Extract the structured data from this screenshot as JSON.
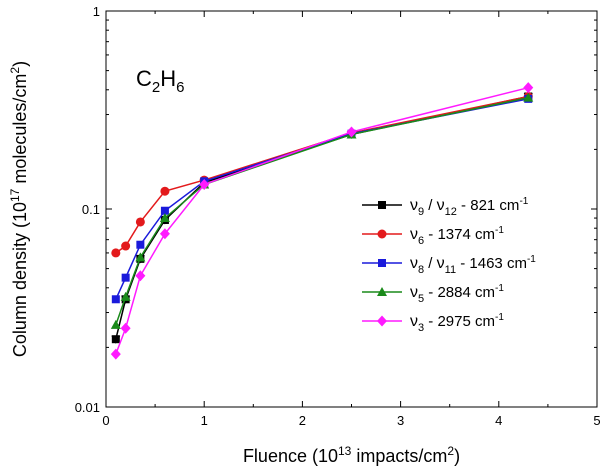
{
  "chart_data": {
    "type": "line",
    "title": "",
    "annotation": {
      "species": "C",
      "sub1": "2",
      "mid": "H",
      "sub2": "6"
    },
    "xlabel": {
      "pre": "Fluence (10",
      "sup": "13",
      "mid": " impacts/cm",
      "sup2": "2",
      "post": ")"
    },
    "ylabel": {
      "pre": "Column density (10",
      "sup": "17",
      "mid": " molecules/cm",
      "sup2": "2",
      "post": ")"
    },
    "x_scale": "linear",
    "y_scale": "log",
    "xlim": [
      0,
      5
    ],
    "ylim": [
      0.01,
      1
    ],
    "x_ticks": [
      0,
      1,
      2,
      3,
      4,
      5
    ],
    "x_tick_labels": [
      "0",
      "1",
      "2",
      "3",
      "4",
      "5"
    ],
    "y_ticks": [
      0.01,
      0.1,
      1
    ],
    "y_tick_labels": [
      "0.01",
      "0.1",
      "1"
    ],
    "grid": false,
    "legend_position": "center-right",
    "series": [
      {
        "legend": {
          "n1": "9",
          "n2": "12",
          "band": "821"
        },
        "color": "#000000",
        "marker": "square",
        "x": [
          0.1,
          0.2,
          0.35,
          0.6,
          1.0,
          2.5,
          4.3
        ],
        "y": [
          0.022,
          0.035,
          0.056,
          0.088,
          0.136,
          0.238,
          0.37
        ]
      },
      {
        "legend": {
          "n1": "6",
          "n2": "",
          "band": "1374"
        },
        "color": "#e31a1c",
        "marker": "circle",
        "x": [
          0.1,
          0.2,
          0.35,
          0.6,
          1.0,
          2.5,
          4.3
        ],
        "y": [
          0.06,
          0.065,
          0.086,
          0.123,
          0.14,
          0.242,
          0.37
        ]
      },
      {
        "legend": {
          "n1": "8",
          "n2": "11",
          "band": "1463"
        },
        "color": "#1a1adb",
        "marker": "square",
        "x": [
          0.1,
          0.2,
          0.35,
          0.6,
          1.0,
          2.5,
          4.3
        ],
        "y": [
          0.035,
          0.045,
          0.066,
          0.098,
          0.138,
          0.24,
          0.36
        ]
      },
      {
        "legend": {
          "n1": "5",
          "n2": "",
          "band": "2884"
        },
        "color": "#1a8a1a",
        "marker": "triangle-up",
        "x": [
          0.1,
          0.2,
          0.35,
          0.6,
          1.0,
          2.5,
          4.3
        ],
        "y": [
          0.026,
          0.036,
          0.057,
          0.09,
          0.133,
          0.238,
          0.365
        ]
      },
      {
        "legend": {
          "n1": "3",
          "n2": "",
          "band": "2975"
        },
        "color": "#ff1aff",
        "marker": "diamond",
        "x": [
          0.1,
          0.2,
          0.35,
          0.6,
          1.0,
          2.5,
          4.3
        ],
        "y": [
          0.0185,
          0.025,
          0.046,
          0.075,
          0.133,
          0.245,
          0.41
        ]
      }
    ],
    "legend_greek": "ν",
    "legend_sep": " / ",
    "legend_dash": " - ",
    "legend_unit": " cm",
    "legend_unit_sup": "-1"
  }
}
